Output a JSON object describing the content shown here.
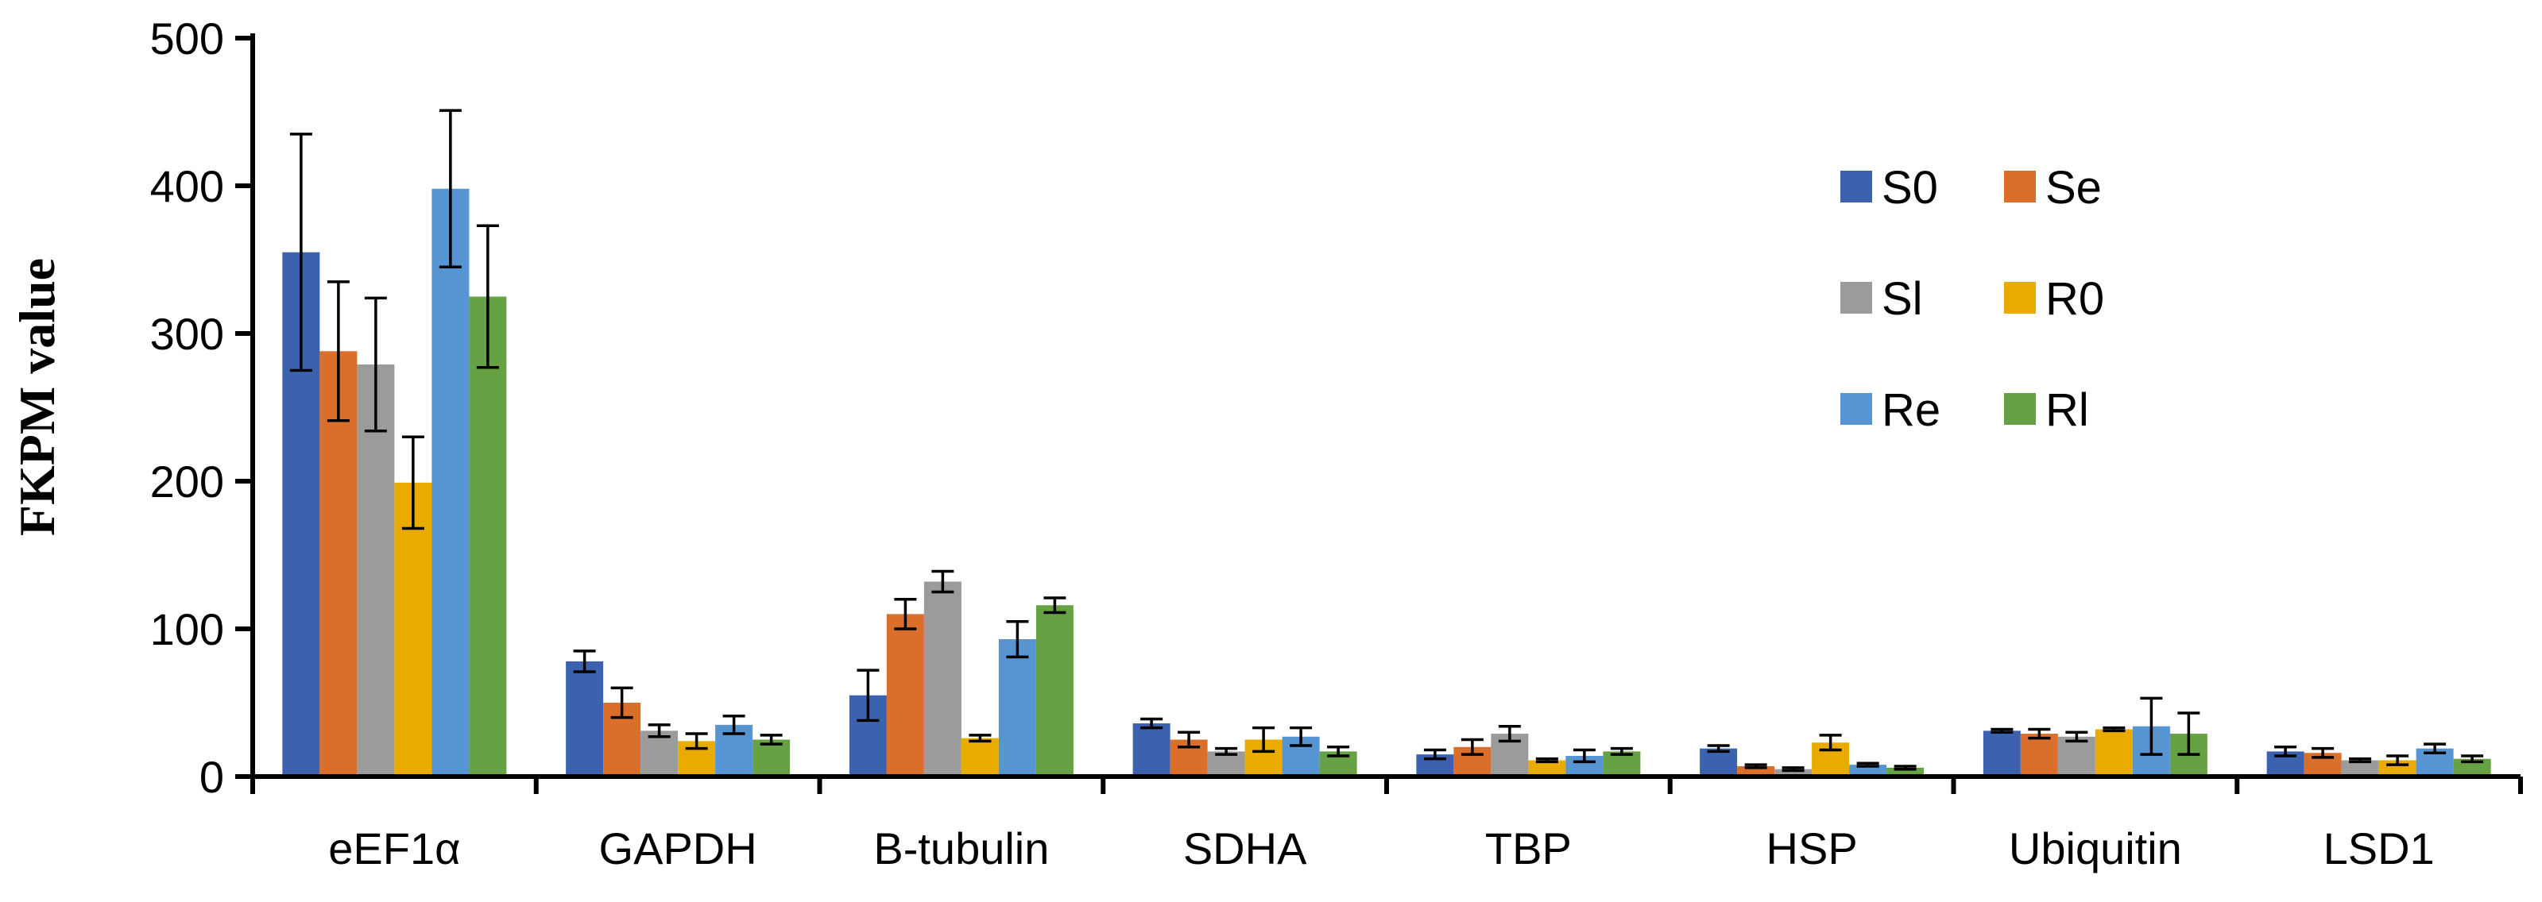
{
  "chart_data": {
    "type": "bar",
    "title": "",
    "xlabel": "",
    "ylabel": "FKPM value",
    "ylim": [
      0,
      500
    ],
    "yticks": [
      0,
      100,
      200,
      300,
      400,
      500
    ],
    "ytick_labels": [
      "0",
      "100",
      "200",
      "300",
      "400",
      "500"
    ],
    "grid": false,
    "legend_position": "top-right",
    "categories": [
      "eEF1α",
      "GAPDH",
      "B-tubulin",
      "SDHA",
      "TBP",
      "HSP",
      "Ubiquitin",
      "LSD1"
    ],
    "series": [
      {
        "name": "S0",
        "color": "#3C62AF",
        "values": [
          355,
          78,
          55,
          36,
          15,
          19,
          31,
          17
        ],
        "errors": [
          80,
          7,
          17,
          3,
          3,
          2,
          1,
          3
        ]
      },
      {
        "name": "Se",
        "color": "#DA6F2C",
        "values": [
          288,
          50,
          110,
          25,
          20,
          7,
          29,
          16
        ],
        "errors": [
          47,
          10,
          10,
          5,
          5,
          1,
          3,
          3
        ]
      },
      {
        "name": "Sl",
        "color": "#9B9B9B",
        "values": [
          279,
          31,
          132,
          17,
          29,
          5,
          27,
          11
        ],
        "errors": [
          45,
          4,
          7,
          2,
          5,
          1,
          3,
          1
        ]
      },
      {
        "name": "R0",
        "color": "#E9AB00",
        "values": [
          199,
          24,
          26,
          25,
          11,
          23,
          32,
          11
        ],
        "errors": [
          31,
          5,
          2,
          8,
          1,
          5,
          1,
          3
        ]
      },
      {
        "name": "Re",
        "color": "#5695D1",
        "values": [
          398,
          35,
          93,
          27,
          14,
          8,
          34,
          19
        ],
        "errors": [
          53,
          6,
          12,
          6,
          4,
          1,
          19,
          3
        ]
      },
      {
        "name": "Rl",
        "color": "#66A143",
        "values": [
          325,
          25,
          116,
          17,
          17,
          6,
          29,
          12
        ],
        "errors": [
          48,
          3,
          5,
          3,
          2,
          1,
          14,
          2
        ]
      }
    ]
  }
}
